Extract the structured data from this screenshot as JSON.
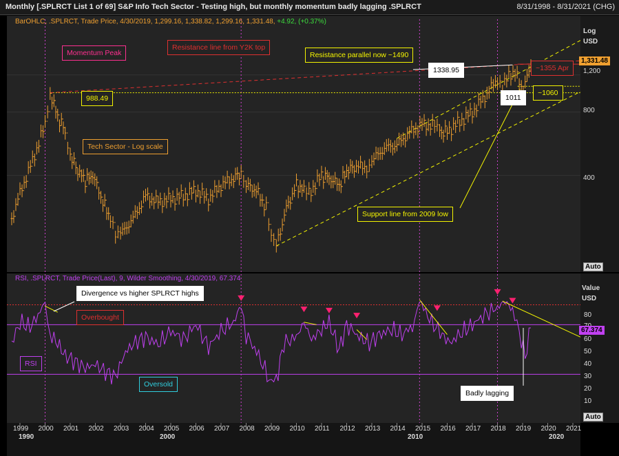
{
  "title": "Monthly [.SPLRCT List 1 of 69] S&P Info Tech Sector - Testing high, but monthly momentum badly lagging  .SPLRCT",
  "date_range": "8/31/1998 - 8/31/2021 (CHG)",
  "price_legend": {
    "prefix": "BarOHLC, .SPLRCT, Trade Price, 4/30/2019, 1,299.16, 1,338.82, 1,299.16, 1,331.48,",
    "change": "+4.92, (+0.37%)"
  },
  "rsi_legend": "RSI, .SPLRCT, Trade Price(Last), 9, Wilder Smoothing, 4/30/2019, 67.374",
  "price_axis": {
    "title1": "Log",
    "title2": "USD",
    "ticks": [
      "1,200",
      "800",
      "400"
    ],
    "current": "1,331.48"
  },
  "rsi_axis": {
    "title1": "Value",
    "title2": "USD",
    "ticks": [
      "80",
      "70",
      "60",
      "50",
      "40",
      "30",
      "20",
      "10"
    ],
    "current": "67.374"
  },
  "auto_label": "Auto",
  "x_axis": {
    "years": [
      "1999",
      "2000",
      "2001",
      "2002",
      "2003",
      "2004",
      "2005",
      "2006",
      "2007",
      "2008",
      "2009",
      "2010",
      "2011",
      "2012",
      "2013",
      "2014",
      "2015",
      "2016",
      "2017",
      "2018",
      "2019",
      "2020",
      "2021"
    ],
    "decades": [
      "1990",
      "2000",
      "2010",
      "2020"
    ]
  },
  "annotations": {
    "momentum_peak": "Momentum Peak",
    "resistance_y2k": "Resistance line from Y2K top",
    "resistance_parallel": "Resistance parallel now ~1490",
    "val_1338": "1338.95",
    "val_1355": "~1355 Apr",
    "val_988": "988.49",
    "val_1011": "1011",
    "val_1060": "~1060",
    "tech_sector": "Tech Sector - Log scale",
    "support_line": "Support line from 2009 low",
    "divergence": "Divergence vs higher SPLRCT highs",
    "overbought": "Overbought",
    "rsi": "RSI",
    "oversold": "Oversold",
    "badly_lagging": "Badly lagging"
  },
  "colors": {
    "price": "#f0a030",
    "rsi": "#c040f0",
    "up": "#3ddc3d",
    "yellow": "#f5f500",
    "red": "#e03030",
    "pink": "#ff2070",
    "cyan": "#30d0e0",
    "magenta": "#d040d0"
  },
  "chart_data": [
    {
      "type": "line",
      "title": "S&P Info Tech Sector (.SPLRCT) monthly OHLC",
      "ylabel": "USD",
      "yscale": "log",
      "ylim": [
        150,
        1900
      ],
      "x": [
        1998.67,
        1999.0,
        1999.5,
        2000.0,
        2000.2,
        2000.5,
        2000.8,
        2001.0,
        2001.3,
        2001.6,
        2001.9,
        2002.3,
        2002.6,
        2002.8,
        2003.0,
        2003.5,
        2004.0,
        2004.5,
        2005.0,
        2005.5,
        2006.0,
        2006.5,
        2007.0,
        2007.5,
        2007.8,
        2008.0,
        2008.4,
        2008.8,
        2009.0,
        2009.2,
        2009.6,
        2010.0,
        2010.3,
        2010.5,
        2011.0,
        2011.3,
        2011.7,
        2012.0,
        2012.3,
        2012.8,
        2013.0,
        2013.5,
        2014.0,
        2014.5,
        2015.0,
        2015.5,
        2015.7,
        2016.0,
        2016.5,
        2017.0,
        2017.5,
        2018.0,
        2018.2,
        2018.7,
        2018.95,
        2019.1,
        2019.33
      ],
      "y": [
        250,
        330,
        470,
        700,
        988,
        760,
        650,
        500,
        420,
        380,
        400,
        300,
        250,
        210,
        210,
        250,
        320,
        300,
        310,
        320,
        340,
        310,
        360,
        390,
        410,
        360,
        340,
        280,
        200,
        185,
        280,
        360,
        340,
        330,
        400,
        390,
        360,
        420,
        440,
        440,
        470,
        540,
        560,
        640,
        700,
        690,
        640,
        650,
        720,
        800,
        950,
        1150,
        1080,
        1270,
        1011,
        1100,
        1331
      ]
    },
    {
      "type": "line",
      "title": "RSI(9) Wilder Smoothing",
      "ylim": [
        0,
        100
      ],
      "overbought": 70,
      "oversold": 30,
      "x": [
        1998.67,
        1999.0,
        1999.4,
        1999.8,
        2000.0,
        2000.2,
        2000.5,
        2000.8,
        2001.2,
        2001.6,
        2002.0,
        2002.4,
        2002.8,
        2003.2,
        2003.6,
        2004.0,
        2004.5,
        2005.0,
        2005.5,
        2006.0,
        2006.5,
        2007.0,
        2007.5,
        2007.8,
        2008.0,
        2008.5,
        2009.0,
        2009.2,
        2009.5,
        2010.0,
        2010.3,
        2010.6,
        2011.0,
        2011.3,
        2011.7,
        2012.0,
        2012.5,
        2012.9,
        2013.3,
        2013.8,
        2014.2,
        2014.7,
        2014.9,
        2015.3,
        2015.8,
        2016.1,
        2016.6,
        2017.0,
        2017.5,
        2018.0,
        2018.3,
        2018.6,
        2018.95,
        2019.1,
        2019.33
      ],
      "y": [
        55,
        72,
        68,
        80,
        85,
        62,
        55,
        45,
        40,
        35,
        38,
        32,
        28,
        48,
        56,
        60,
        54,
        65,
        58,
        70,
        52,
        65,
        72,
        86,
        62,
        45,
        22,
        25,
        55,
        60,
        72,
        58,
        66,
        72,
        50,
        70,
        60,
        55,
        62,
        66,
        62,
        70,
        90,
        74,
        62,
        55,
        64,
        70,
        78,
        84,
        89,
        82,
        58,
        44,
        67.4
      ]
    }
  ]
}
